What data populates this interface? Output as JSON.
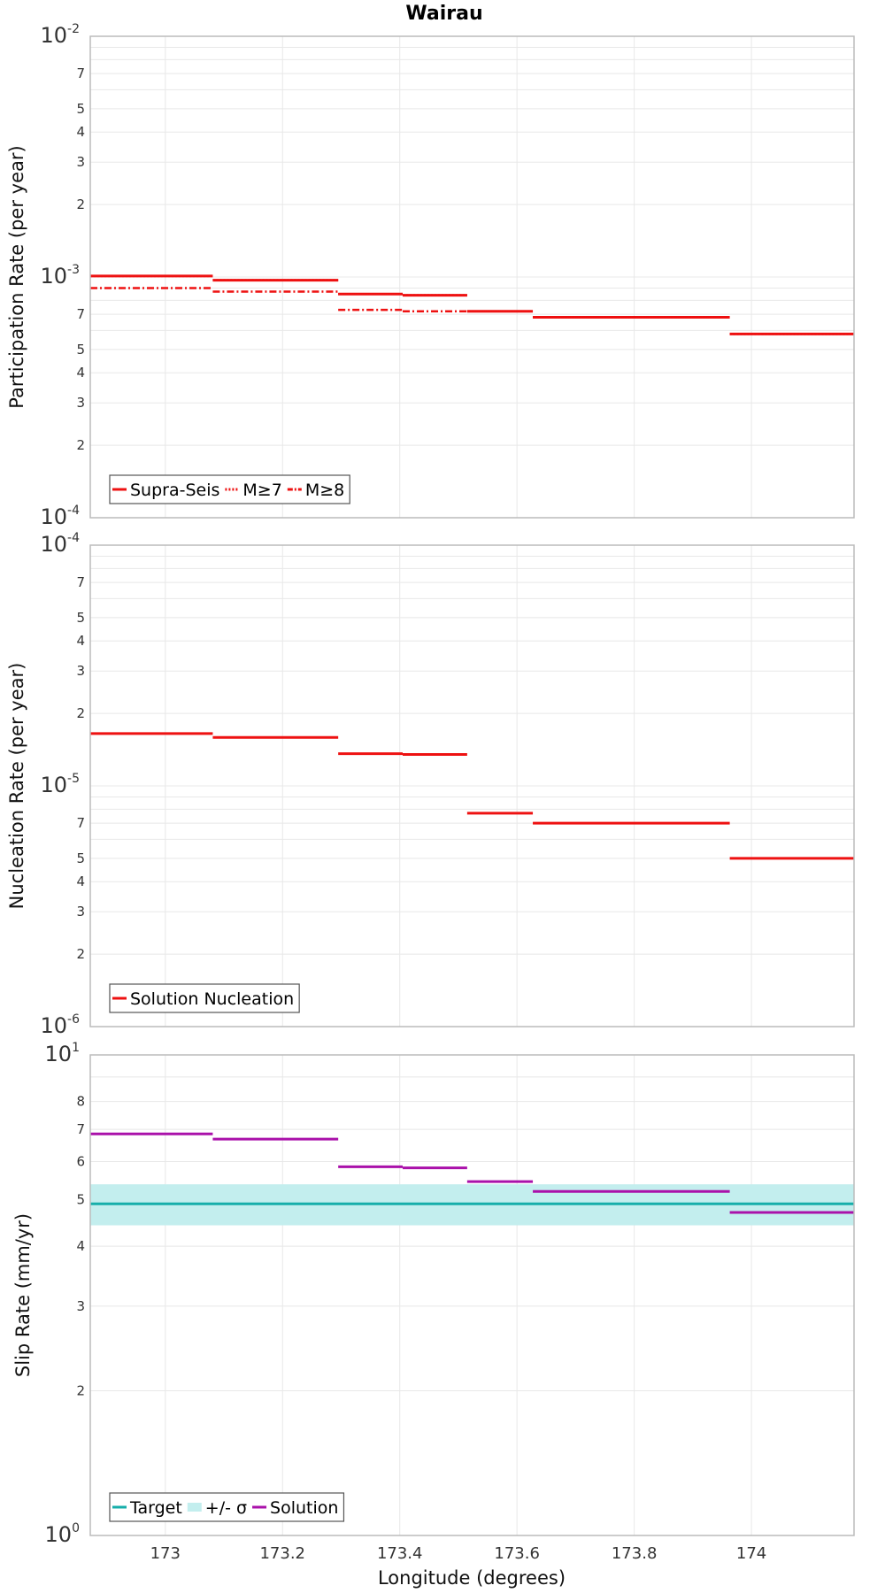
{
  "title": "Wairau",
  "xlabel": "Longitude (degrees)",
  "colors": {
    "red": "#ee1111",
    "purple": "#aa11aa",
    "teal": "#16aeaa",
    "band": "#c3eeee",
    "grid": "#e8e8e8",
    "frame": "#bbbbbb"
  },
  "chart_data": [
    {
      "type": "line",
      "title": "Wairau",
      "xlabel": "",
      "ylabel": "Participation Rate (per year)",
      "yscale": "log",
      "xlim": [
        172.872,
        174.175
      ],
      "ylim": [
        0.0001,
        0.01
      ],
      "xticks": [
        173,
        173.2,
        173.4,
        173.6,
        173.8,
        174
      ],
      "xtick_labels": [
        "",
        "",
        "",
        "",
        "",
        ""
      ],
      "y_decades": [
        {
          "base": "10",
          "exp": "-4",
          "value": 0.0001
        },
        {
          "base": "10",
          "exp": "-3",
          "value": 0.001
        },
        {
          "base": "10",
          "exp": "-2",
          "value": 0.01
        }
      ],
      "y_minor_ticks": [
        {
          "value": 0.0002,
          "label": "2"
        },
        {
          "value": 0.0003,
          "label": "3"
        },
        {
          "value": 0.0004,
          "label": "4"
        },
        {
          "value": 0.0005,
          "label": "5"
        },
        {
          "value": 0.0007,
          "label": "7"
        },
        {
          "value": 0.002,
          "label": "2"
        },
        {
          "value": 0.003,
          "label": "3"
        },
        {
          "value": 0.004,
          "label": "4"
        },
        {
          "value": 0.005,
          "label": "5"
        },
        {
          "value": 0.007,
          "label": "7"
        }
      ],
      "legend_position": "bottom-left",
      "series": [
        {
          "name": "Supra-Seis",
          "style": "solid",
          "segments": [
            {
              "x0": 172.872,
              "x1": 173.081,
              "y": 0.00101
            },
            {
              "x0": 173.081,
              "x1": 173.295,
              "y": 0.00097
            },
            {
              "x0": 173.295,
              "x1": 173.405,
              "y": 0.00085
            },
            {
              "x0": 173.405,
              "x1": 173.515,
              "y": 0.00084
            },
            {
              "x0": 173.515,
              "x1": 173.627,
              "y": 0.00072
            },
            {
              "x0": 173.627,
              "x1": 173.963,
              "y": 0.00068
            },
            {
              "x0": 173.963,
              "x1": 174.175,
              "y": 0.00058
            }
          ]
        },
        {
          "name": "M≥7",
          "style": "dotted",
          "segments": [
            {
              "x0": 172.872,
              "x1": 173.081,
              "y": 0.00101
            },
            {
              "x0": 173.081,
              "x1": 173.295,
              "y": 0.00097
            },
            {
              "x0": 173.295,
              "x1": 173.405,
              "y": 0.00085
            },
            {
              "x0": 173.405,
              "x1": 173.515,
              "y": 0.00084
            },
            {
              "x0": 173.515,
              "x1": 173.627,
              "y": 0.00072
            },
            {
              "x0": 173.627,
              "x1": 173.963,
              "y": 0.00068
            },
            {
              "x0": 173.963,
              "x1": 174.175,
              "y": 0.00058
            }
          ]
        },
        {
          "name": "M≥8",
          "style": "dashdot",
          "segments": [
            {
              "x0": 172.872,
              "x1": 173.081,
              "y": 0.0009
            },
            {
              "x0": 173.081,
              "x1": 173.295,
              "y": 0.00087
            },
            {
              "x0": 173.295,
              "x1": 173.405,
              "y": 0.00073
            },
            {
              "x0": 173.405,
              "x1": 173.515,
              "y": 0.00072
            }
          ]
        }
      ]
    },
    {
      "type": "line",
      "title": "",
      "xlabel": "",
      "ylabel": "Nucleation Rate (per year)",
      "yscale": "log",
      "xlim": [
        172.872,
        174.175
      ],
      "ylim": [
        1e-06,
        0.0001
      ],
      "xticks": [
        173,
        173.2,
        173.4,
        173.6,
        173.8,
        174
      ],
      "xtick_labels": [
        "",
        "",
        "",
        "",
        "",
        ""
      ],
      "y_decades": [
        {
          "base": "10",
          "exp": "-6",
          "value": 1e-06
        },
        {
          "base": "10",
          "exp": "-5",
          "value": 1e-05
        },
        {
          "base": "10",
          "exp": "-4",
          "value": 0.0001
        }
      ],
      "y_minor_ticks": [
        {
          "value": 2e-06,
          "label": "2"
        },
        {
          "value": 3e-06,
          "label": "3"
        },
        {
          "value": 4e-06,
          "label": "4"
        },
        {
          "value": 5e-06,
          "label": "5"
        },
        {
          "value": 7e-06,
          "label": "7"
        },
        {
          "value": 2e-05,
          "label": "2"
        },
        {
          "value": 3e-05,
          "label": "3"
        },
        {
          "value": 4e-05,
          "label": "4"
        },
        {
          "value": 5e-05,
          "label": "5"
        },
        {
          "value": 7e-05,
          "label": "7"
        }
      ],
      "legend_position": "bottom-left",
      "series": [
        {
          "name": "Solution Nucleation",
          "style": "solid",
          "segments": [
            {
              "x0": 172.872,
              "x1": 173.081,
              "y": 1.65e-05
            },
            {
              "x0": 173.081,
              "x1": 173.295,
              "y": 1.59e-05
            },
            {
              "x0": 173.295,
              "x1": 173.405,
              "y": 1.36e-05
            },
            {
              "x0": 173.405,
              "x1": 173.515,
              "y": 1.35e-05
            },
            {
              "x0": 173.515,
              "x1": 173.627,
              "y": 7.7e-06
            },
            {
              "x0": 173.627,
              "x1": 173.963,
              "y": 7e-06
            },
            {
              "x0": 173.963,
              "x1": 174.175,
              "y": 5e-06
            }
          ]
        }
      ]
    },
    {
      "type": "line",
      "title": "",
      "xlabel": "Longitude (degrees)",
      "ylabel": "Slip Rate (mm/yr)",
      "yscale": "log",
      "xlim": [
        172.872,
        174.175
      ],
      "ylim": [
        1,
        10
      ],
      "xticks": [
        173,
        173.2,
        173.4,
        173.6,
        173.8,
        174
      ],
      "xtick_labels": [
        "173",
        "173.2",
        "173.4",
        "173.6",
        "173.8",
        "174"
      ],
      "y_decades": [
        {
          "base": "10",
          "exp": "0",
          "value": 1
        },
        {
          "base": "10",
          "exp": "1",
          "value": 10
        }
      ],
      "y_minor_ticks": [
        {
          "value": 2,
          "label": "2"
        },
        {
          "value": 3,
          "label": "3"
        },
        {
          "value": 4,
          "label": "4"
        },
        {
          "value": 5,
          "label": "5"
        },
        {
          "value": 6,
          "label": "6"
        },
        {
          "value": 7,
          "label": "7"
        },
        {
          "value": 8,
          "label": "8"
        }
      ],
      "legend_position": "bottom-left",
      "band": {
        "name": "+/- σ",
        "low": 4.42,
        "high": 5.38
      },
      "series": [
        {
          "name": "Target",
          "style": "solid",
          "color_key": "teal",
          "segments": [
            {
              "x0": 172.872,
              "x1": 174.175,
              "y": 4.9
            }
          ]
        },
        {
          "name": "Solution",
          "style": "solid",
          "color_key": "purple",
          "segments": [
            {
              "x0": 172.872,
              "x1": 173.081,
              "y": 6.85
            },
            {
              "x0": 173.081,
              "x1": 173.295,
              "y": 6.68
            },
            {
              "x0": 173.295,
              "x1": 173.405,
              "y": 5.85
            },
            {
              "x0": 173.405,
              "x1": 173.515,
              "y": 5.82
            },
            {
              "x0": 173.515,
              "x1": 173.627,
              "y": 5.45
            },
            {
              "x0": 173.627,
              "x1": 173.963,
              "y": 5.2
            },
            {
              "x0": 173.963,
              "x1": 174.175,
              "y": 4.7
            }
          ]
        }
      ]
    }
  ]
}
